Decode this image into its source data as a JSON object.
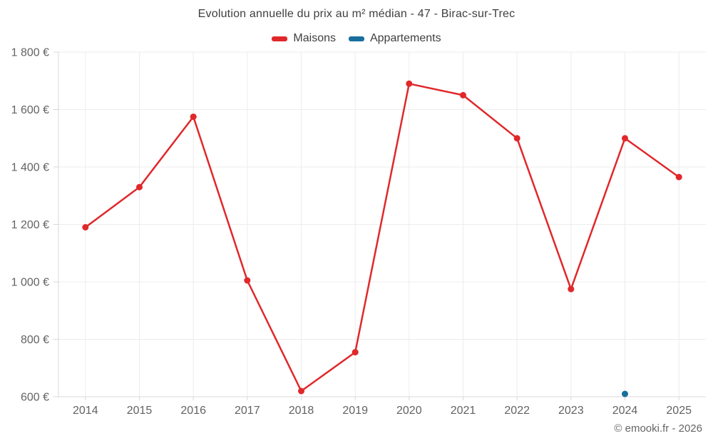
{
  "footer": {
    "copyright": "© emooki.fr - 2026"
  },
  "chart_data": {
    "type": "line",
    "title": "Evolution annuelle du prix au m² médian - 47 - Birac-sur-Trec",
    "xlabel": "",
    "ylabel": "",
    "categories": [
      "2014",
      "2015",
      "2016",
      "2017",
      "2018",
      "2019",
      "2020",
      "2021",
      "2022",
      "2023",
      "2024",
      "2025"
    ],
    "series": [
      {
        "name": "Maisons",
        "color": "#e0282b",
        "values": [
          1190,
          1330,
          1575,
          1005,
          620,
          755,
          1690,
          1650,
          1500,
          975,
          1500,
          1365
        ]
      },
      {
        "name": "Appartements",
        "color": "#186f9e",
        "values": [
          null,
          null,
          null,
          null,
          null,
          null,
          null,
          null,
          null,
          null,
          610,
          null
        ]
      }
    ],
    "ylim": [
      600,
      1800
    ],
    "yticks": [
      600,
      800,
      1000,
      1200,
      1400,
      1600,
      1800
    ],
    "ytick_labels": [
      "600 €",
      "800 €",
      "1 000 €",
      "1 200 €",
      "1 400 €",
      "1 600 €",
      "1 800 €"
    ],
    "grid": true,
    "legend_position": "top"
  },
  "theme": {
    "grid_color": "#ececec",
    "axis_color": "#d8d8d8",
    "tick_text_color": "#636363"
  }
}
